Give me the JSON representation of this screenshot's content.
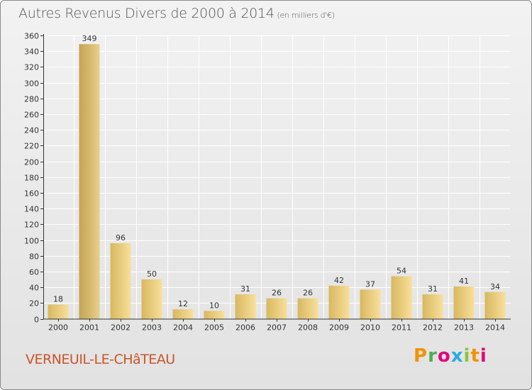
{
  "header": {
    "title": "Autres Revenus Divers de 2000 à 2014",
    "subtitle": "(en milliers d'€)"
  },
  "footer": {
    "commune": "VERNEUIL-LE-CHâTEAU",
    "brand": "Proxiti",
    "brand_colors": [
      "#f39200",
      "#4caf50",
      "#e5007d",
      "#29abe2",
      "#8bc53f",
      "#f39200",
      "#e5007d"
    ]
  },
  "colors": {
    "bar_light": "#f8df9a",
    "bar_dark": "#d8b860",
    "highlight_light": "#e8cf8a",
    "highlight_dark": "#c4a352",
    "axis": "#333333",
    "grid": "#ffffff"
  },
  "chart_data": {
    "type": "bar",
    "categories": [
      "2000",
      "2001",
      "2002",
      "2003",
      "2004",
      "2005",
      "2006",
      "2007",
      "2008",
      "2009",
      "2010",
      "2011",
      "2012",
      "2013",
      "2014"
    ],
    "values": [
      18,
      349,
      96,
      50,
      12,
      10,
      31,
      26,
      26,
      42,
      37,
      54,
      31,
      41,
      34
    ],
    "highlight_index": 1,
    "title": "Autres Revenus Divers de 2000 à 2014",
    "subtitle": "(en milliers d'€)",
    "xlabel": "",
    "ylabel": "",
    "ylim": [
      0,
      360
    ],
    "ytick_step": 20,
    "grid": true
  }
}
